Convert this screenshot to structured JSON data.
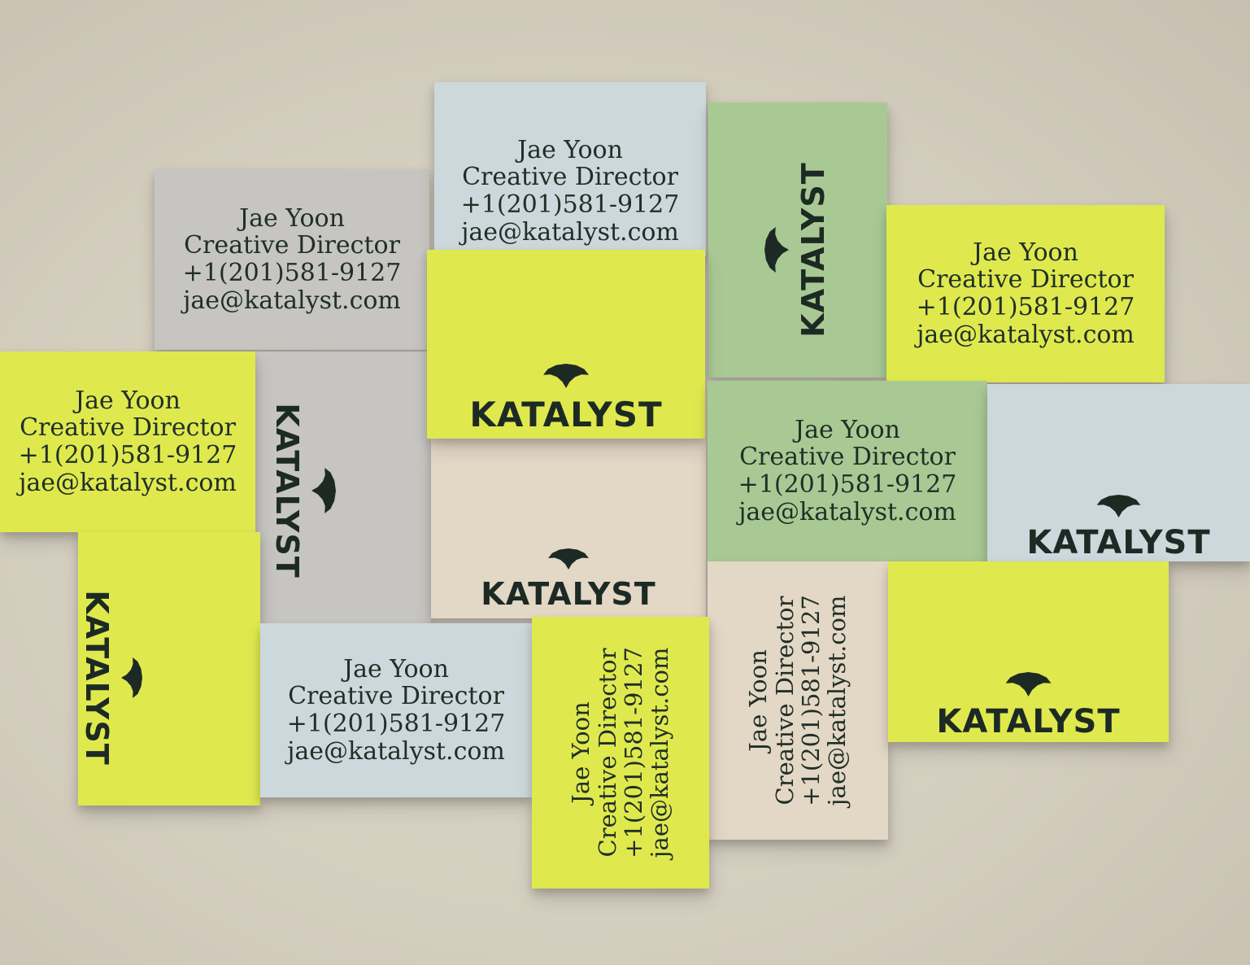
{
  "cards": {
    "name": "Jae Yoon",
    "title": "Creative Director",
    "phone": "+1(201)581-9127",
    "email": "jae@katalyst.com"
  },
  "brand": {
    "wordmark": "KATALYST",
    "icon": "katalyst-dome-icon"
  },
  "colors": {
    "yellow": "#dfe94e",
    "grey": "#c6c5c1",
    "blue": "#cdd8dc",
    "green": "#a9c994",
    "beige": "#e3d7c6",
    "ink": "#1d2a24",
    "background": "#d6d0c2"
  }
}
